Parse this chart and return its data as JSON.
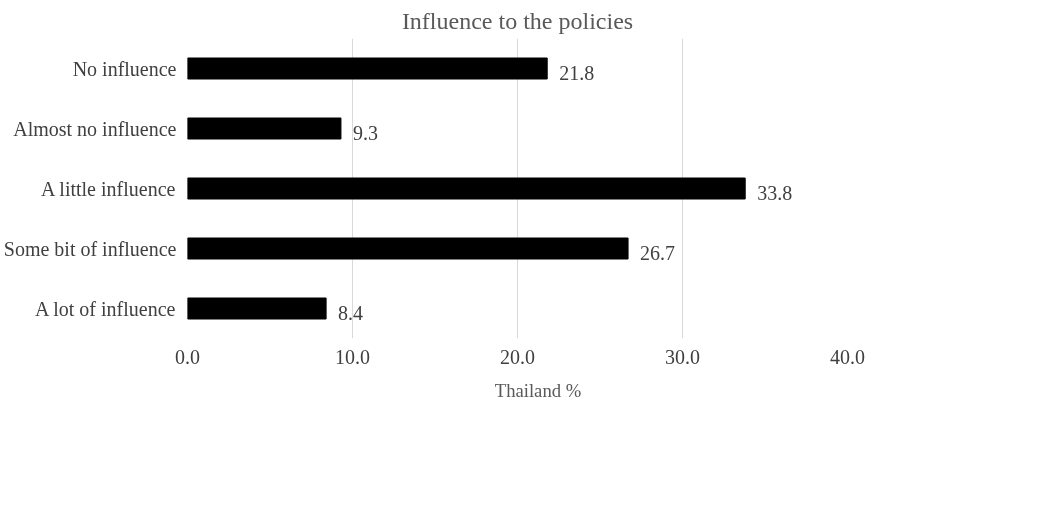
{
  "chart_data": {
    "type": "bar",
    "orientation": "horizontal",
    "title": "Influence to the policies",
    "categories": [
      "No influence",
      "Almost no influence",
      "A little influence",
      "Some bit of influence",
      "A lot of influence"
    ],
    "series": [
      {
        "name": "Thailand %",
        "color": "#000000",
        "values": [
          21.8,
          9.3,
          33.8,
          26.7,
          8.4
        ]
      }
    ],
    "xlim": [
      0,
      40
    ],
    "xticks": [
      {
        "value": 0,
        "label": "0.0"
      },
      {
        "value": 10,
        "label": "10.0"
      },
      {
        "value": 20,
        "label": "20.0"
      },
      {
        "value": 30,
        "label": "30.0"
      },
      {
        "value": 40,
        "label": "40.0"
      }
    ],
    "grid": "x",
    "legend": "bottom",
    "data_labels": true
  }
}
